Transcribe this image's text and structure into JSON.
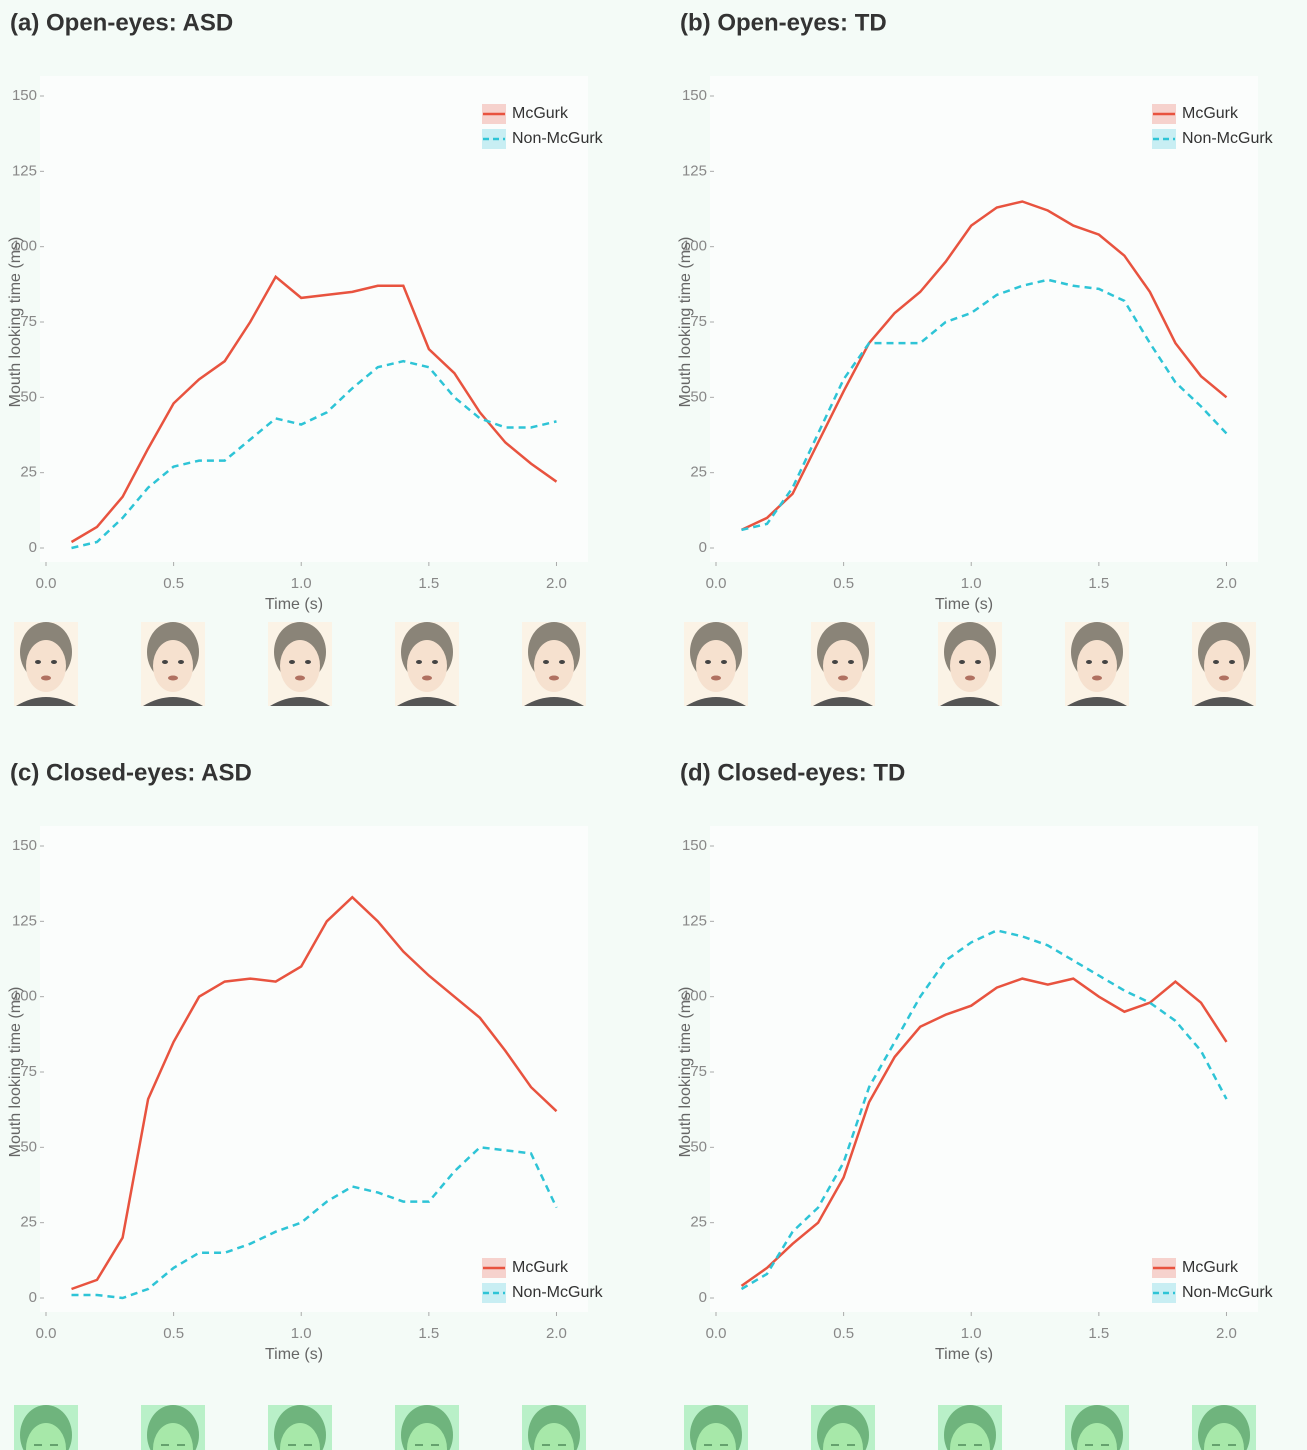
{
  "chart_data": [
    {
      "type": "line",
      "title": "(a) Open-eyes: ASD",
      "x_label": "Time (s)",
      "y_label": "Mouth looking time (ms)",
      "x": [
        0.1,
        0.2,
        0.3,
        0.4,
        0.5,
        0.6,
        0.7,
        0.8,
        0.9,
        1.0,
        1.1,
        1.2,
        1.3,
        1.4,
        1.5,
        1.6,
        1.7,
        1.8,
        1.9,
        2.0
      ],
      "xlim": [
        0,
        2.1
      ],
      "ylim": [
        0,
        150
      ],
      "xticks": [
        {
          "value": 0,
          "label": "0.0"
        },
        0.5,
        {
          "value": 1,
          "label": "1.0"
        },
        1.5,
        {
          "value": 2,
          "label": "2.0"
        }
      ],
      "yticks": [
        0,
        25,
        50,
        75,
        100,
        125,
        150
      ],
      "legend_position": "top-right",
      "series": [
        {
          "name": "McGurk",
          "color": "#e8533f",
          "values": [
            2,
            7,
            17,
            33,
            48,
            56,
            62,
            75,
            90,
            83,
            84,
            85,
            87,
            87,
            66,
            58,
            45,
            35,
            28,
            22
          ]
        },
        {
          "name": "Non-McGurk",
          "color": "#2ec4d6",
          "values": [
            0,
            2,
            10,
            20,
            27,
            29,
            29,
            36,
            43,
            41,
            45,
            53,
            60,
            62,
            60,
            50,
            43,
            40,
            40,
            42
          ]
        }
      ]
    },
    {
      "type": "line",
      "title": "(b) Open-eyes: TD",
      "x_label": "Time (s)",
      "y_label": "Mouth looking time (ms)",
      "x": [
        0.1,
        0.2,
        0.3,
        0.4,
        0.5,
        0.6,
        0.7,
        0.8,
        0.9,
        1.0,
        1.1,
        1.2,
        1.3,
        1.4,
        1.5,
        1.6,
        1.7,
        1.8,
        1.9,
        2.0
      ],
      "xlim": [
        0,
        2.1
      ],
      "ylim": [
        0,
        150
      ],
      "xticks": [
        {
          "value": 0,
          "label": "0.0"
        },
        0.5,
        {
          "value": 1,
          "label": "1.0"
        },
        1.5,
        {
          "value": 2,
          "label": "2.0"
        }
      ],
      "yticks": [
        0,
        25,
        50,
        75,
        100,
        125,
        150
      ],
      "legend_position": "top-right",
      "series": [
        {
          "name": "McGurk",
          "color": "#e8533f",
          "values": [
            6,
            10,
            18,
            35,
            52,
            68,
            78,
            85,
            95,
            107,
            113,
            115,
            112,
            107,
            104,
            97,
            85,
            68,
            57,
            50
          ]
        },
        {
          "name": "Non-McGurk",
          "color": "#2ec4d6",
          "values": [
            6,
            8,
            20,
            38,
            56,
            68,
            68,
            68,
            75,
            78,
            84,
            87,
            89,
            87,
            86,
            82,
            68,
            55,
            47,
            38
          ]
        }
      ]
    },
    {
      "type": "line",
      "title": "(c) Closed-eyes: ASD",
      "x_label": "Time (s)",
      "y_label": "Mouth looking time (ms)",
      "x": [
        0.1,
        0.2,
        0.3,
        0.4,
        0.5,
        0.6,
        0.7,
        0.8,
        0.9,
        1.0,
        1.1,
        1.2,
        1.3,
        1.4,
        1.5,
        1.6,
        1.7,
        1.8,
        1.9,
        2.0
      ],
      "xlim": [
        0,
        2.1
      ],
      "ylim": [
        0,
        150
      ],
      "xticks": [
        {
          "value": 0,
          "label": "0.0"
        },
        0.5,
        {
          "value": 1,
          "label": "1.0"
        },
        1.5,
        {
          "value": 2,
          "label": "2.0"
        }
      ],
      "yticks": [
        0,
        25,
        50,
        75,
        100,
        125,
        150
      ],
      "legend_position": "bottom-right",
      "series": [
        {
          "name": "McGurk",
          "color": "#e8533f",
          "values": [
            3,
            6,
            20,
            66,
            85,
            100,
            105,
            106,
            105,
            110,
            125,
            133,
            125,
            115,
            107,
            100,
            93,
            82,
            70,
            62
          ]
        },
        {
          "name": "Non-McGurk",
          "color": "#2ec4d6",
          "values": [
            1,
            1,
            0,
            3,
            10,
            15,
            15,
            18,
            22,
            25,
            32,
            37,
            35,
            32,
            32,
            42,
            50,
            49,
            48,
            30
          ]
        }
      ]
    },
    {
      "type": "line",
      "title": "(d) Closed-eyes: TD",
      "x_label": "Time (s)",
      "y_label": "Mouth looking time (ms)",
      "x": [
        0.1,
        0.2,
        0.3,
        0.4,
        0.5,
        0.6,
        0.7,
        0.8,
        0.9,
        1.0,
        1.1,
        1.2,
        1.3,
        1.4,
        1.5,
        1.6,
        1.7,
        1.8,
        1.9,
        2.0
      ],
      "xlim": [
        0,
        2.1
      ],
      "ylim": [
        0,
        150
      ],
      "xticks": [
        {
          "value": 0,
          "label": "0.0"
        },
        0.5,
        {
          "value": 1,
          "label": "1.0"
        },
        1.5,
        {
          "value": 2,
          "label": "2.0"
        }
      ],
      "yticks": [
        0,
        25,
        50,
        75,
        100,
        125,
        150
      ],
      "legend_position": "bottom-right",
      "series": [
        {
          "name": "McGurk",
          "color": "#e8533f",
          "values": [
            4,
            10,
            18,
            25,
            40,
            65,
            80,
            90,
            94,
            97,
            103,
            106,
            104,
            106,
            100,
            95,
            98,
            105,
            98,
            85
          ]
        },
        {
          "name": "Non-McGurk",
          "color": "#2ec4d6",
          "values": [
            3,
            8,
            22,
            30,
            45,
            70,
            85,
            100,
            112,
            118,
            122,
            120,
            117,
            112,
            107,
            102,
            98,
            92,
            82,
            66
          ]
        }
      ]
    }
  ]
}
